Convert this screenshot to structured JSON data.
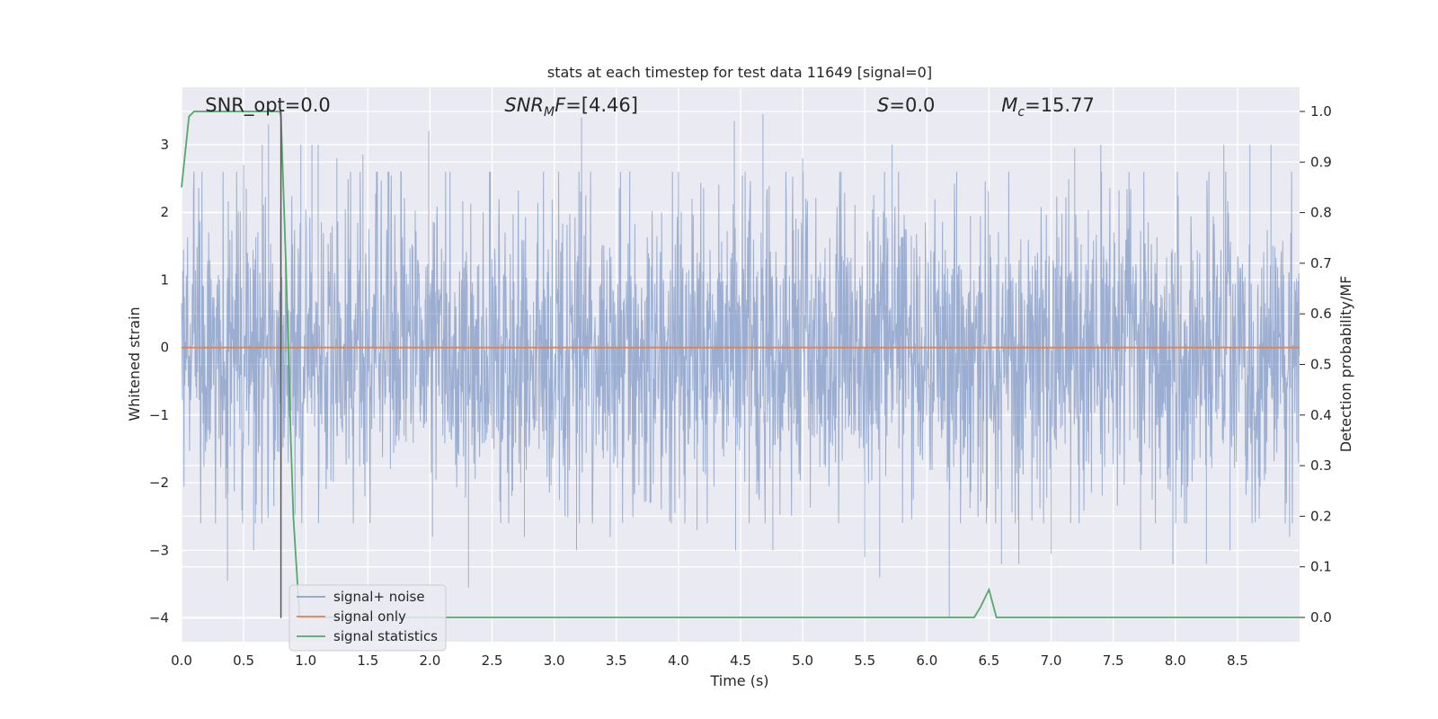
{
  "chart_data": {
    "type": "line",
    "title": "stats at each timestep for test data 11649 [signal=0]",
    "xlabel": "Time (s)",
    "ylabel_left": "Whitened strain",
    "ylabel_right": "Detection probability/MF",
    "xlim": [
      0.0,
      9.0
    ],
    "ylim_left": [
      -4.35,
      3.85
    ],
    "ylim_right": [
      -0.048,
      1.048
    ],
    "xticks": [
      "0.0",
      "0.5",
      "1.0",
      "1.5",
      "2.0",
      "2.5",
      "3.0",
      "3.5",
      "4.0",
      "4.5",
      "5.0",
      "5.5",
      "6.0",
      "6.5",
      "7.0",
      "7.5",
      "8.0",
      "8.5"
    ],
    "yticks_left": [
      "3",
      "2",
      "1",
      "0",
      "−1",
      "−2",
      "−3",
      "−4"
    ],
    "yticks_right": [
      "1.0",
      "0.9",
      "0.8",
      "0.7",
      "0.6",
      "0.5",
      "0.4",
      "0.3",
      "0.2",
      "0.1",
      "0.0"
    ],
    "grid": true,
    "legend_position": "lower-left",
    "annotations": [
      {
        "prefix": "SNR_opt=",
        "value": "0.0",
        "italic": false,
        "x": 0.19
      },
      {
        "prefix": "SNR",
        "sub": "M",
        "suffix": "F=",
        "value": "[4.46]",
        "italic": true,
        "x": 2.6
      },
      {
        "prefix": "S",
        "value": "=0.0",
        "italic": true,
        "x": 5.6
      },
      {
        "prefix": "M",
        "sub": "c",
        "value": "=15.77",
        "italic": true,
        "x": 6.6
      }
    ],
    "series": [
      {
        "name": "signal+ noise",
        "axis": "left",
        "color": "#4c72b0",
        "description": "whitened noise, roughly ±1.7 baseline with spikes up to ~3.5 and down to ~-4",
        "spikes": [
          [
            0.37,
            -3.45
          ],
          [
            0.5,
            2.7
          ],
          [
            0.58,
            -3.0
          ],
          [
            0.65,
            3.0
          ],
          [
            0.7,
            3.3
          ],
          [
            0.8,
            -2.2
          ],
          [
            0.96,
            3.0
          ],
          [
            1.05,
            3.0
          ],
          [
            1.1,
            3.0
          ],
          [
            1.25,
            2.8
          ],
          [
            1.46,
            2.85
          ],
          [
            1.99,
            3.2
          ],
          [
            2.02,
            -2.8
          ],
          [
            2.31,
            -3.55
          ],
          [
            2.76,
            -2.8
          ],
          [
            3.22,
            3.4
          ],
          [
            3.18,
            -3.0
          ],
          [
            3.45,
            -2.8
          ],
          [
            4.15,
            -2.7
          ],
          [
            4.45,
            3.35
          ],
          [
            4.46,
            -3.0
          ],
          [
            4.68,
            3.45
          ],
          [
            4.76,
            -3.0
          ],
          [
            5.0,
            2.8
          ],
          [
            5.5,
            -3.1
          ],
          [
            5.62,
            -3.4
          ],
          [
            5.72,
            3.0
          ],
          [
            6.18,
            -4.0
          ],
          [
            6.24,
            2.6
          ],
          [
            6.6,
            -3.2
          ],
          [
            6.74,
            -3.2
          ],
          [
            7.0,
            -3.05
          ],
          [
            7.19,
            2.95
          ],
          [
            7.4,
            3.0
          ],
          [
            7.72,
            -3.0
          ],
          [
            7.98,
            -3.2
          ],
          [
            8.25,
            -3.2
          ],
          [
            8.39,
            3.0
          ],
          [
            8.44,
            -3.0
          ],
          [
            8.6,
            3.0
          ],
          [
            8.77,
            3.0
          ],
          [
            8.92,
            -2.8
          ]
        ]
      },
      {
        "name": "signal only",
        "axis": "left",
        "color": "#dd8452",
        "x": [
          0.0,
          9.0
        ],
        "y": [
          0.0,
          0.0
        ]
      },
      {
        "name": "signal statistics",
        "axis": "right",
        "color": "#55a868",
        "x": [
          0.0,
          0.06,
          0.1,
          0.2,
          0.5,
          0.79,
          0.8,
          0.84,
          0.88,
          0.9,
          0.95,
          1.0,
          6.38,
          6.43,
          6.5,
          6.56,
          9.0
        ],
        "y": [
          0.85,
          0.99,
          1.0,
          1.0,
          1.0,
          1.0,
          0.99,
          0.7,
          0.35,
          0.2,
          0.0,
          0.0,
          0.0,
          0.02,
          0.055,
          0.0,
          0.0
        ]
      }
    ],
    "marker_line": {
      "x": 0.8,
      "y_from": -4.0,
      "y_to": 3.5,
      "color": "#555555"
    }
  }
}
